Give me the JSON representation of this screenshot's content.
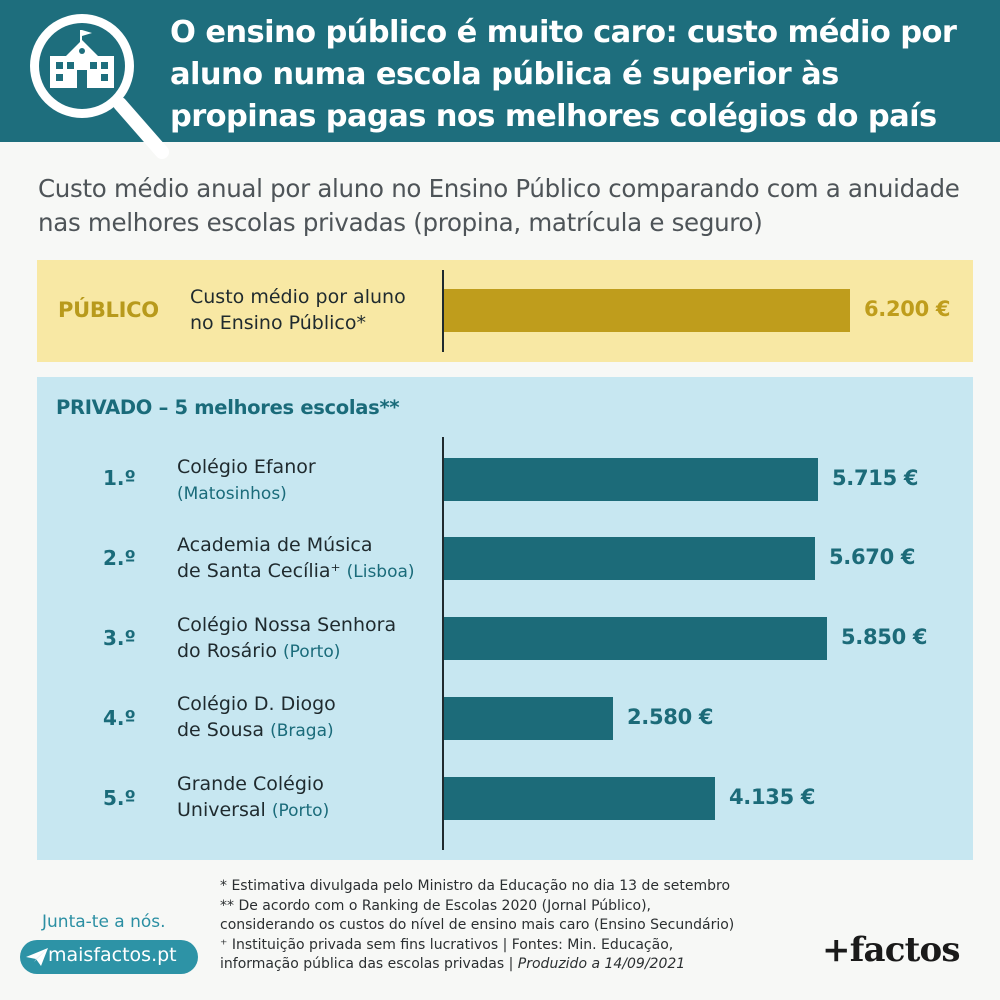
{
  "header": {
    "title": "O ensino público é muito caro: custo médio por aluno numa escola pública é superior às propinas pagas nos melhores colégios do país",
    "icon": "school-magnifier-icon"
  },
  "subtitle": "Custo médio anual por aluno no Ensino Público comparando com a anuidade nas melhores escolas privadas (propina, matrícula e seguro)",
  "public_section": {
    "tag": "PÚBLICO",
    "label_line1": "Custo médio por aluno",
    "label_line2": "no Ensino Público*"
  },
  "private_section": {
    "tag": "PRIVADO – 5 melhores escolas**",
    "schools": [
      {
        "rank": "1.º",
        "line1": "Colégio Efanor",
        "line2": "",
        "city": "(Matosinhos)"
      },
      {
        "rank": "2.º",
        "line1": "Academia de Música",
        "line2": "de Santa Cecília⁺",
        "city": "(Lisboa)"
      },
      {
        "rank": "3.º",
        "line1": "Colégio Nossa Senhora",
        "line2": "do Rosário",
        "city": "(Porto)"
      },
      {
        "rank": "4.º",
        "line1": "Colégio D. Diogo",
        "line2": "de Sousa",
        "city": "(Braga)"
      },
      {
        "rank": "5.º",
        "line1": "Grande Colégio",
        "line2": "Universal",
        "city": "(Porto)"
      }
    ]
  },
  "chart_data": {
    "type": "bar",
    "orientation": "horizontal",
    "categories": [
      "Custo médio por aluno no Ensino Público*",
      "Colégio Efanor (Matosinhos)",
      "Academia de Música de Santa Cecília⁺ (Lisboa)",
      "Colégio Nossa Senhora do Rosário (Porto)",
      "Colégio D. Diogo de Sousa (Braga)",
      "Grande Colégio Universal (Porto)"
    ],
    "values": [
      6200,
      5715,
      5670,
      5850,
      2580,
      4135
    ],
    "value_labels": [
      "6.200 €",
      "5.715 €",
      "5.670 €",
      "5.850 €",
      "2.580 €",
      "4.135 €"
    ],
    "groups": [
      "PÚBLICO",
      "PRIVADO – 5 melhores escolas**",
      "PRIVADO – 5 melhores escolas**",
      "PRIVADO – 5 melhores escolas**",
      "PRIVADO – 5 melhores escolas**",
      "PRIVADO – 5 melhores escolas**"
    ],
    "colors": {
      "public": "#bf9d1c",
      "private": "#1c6b79"
    },
    "grid": false
  },
  "notes": {
    "line1": "* Estimativa divulgada pelo Ministro da Educação no dia 13 de setembro",
    "line2": "** De acordo com o Ranking de Escolas 2020 (Jornal Público),",
    "line3": "considerando os custos do nível de ensino mais caro (Ensino Secundário)",
    "line4": "⁺ Instituição privada sem fins lucrativos | Fontes: Min. Educação,",
    "line5a": "informação pública das escolas privadas | ",
    "line5b": "Produzido a 14/09/2021"
  },
  "footer": {
    "join": "Junta-te a nós.",
    "site": "maisfactos.pt",
    "logo": "+factos",
    "site_icon": "paper-plane-icon"
  },
  "colors": {
    "header_bg": "#1e6e7d",
    "public_panel": "#f8e8a4",
    "private_panel": "#c7e7f1"
  }
}
